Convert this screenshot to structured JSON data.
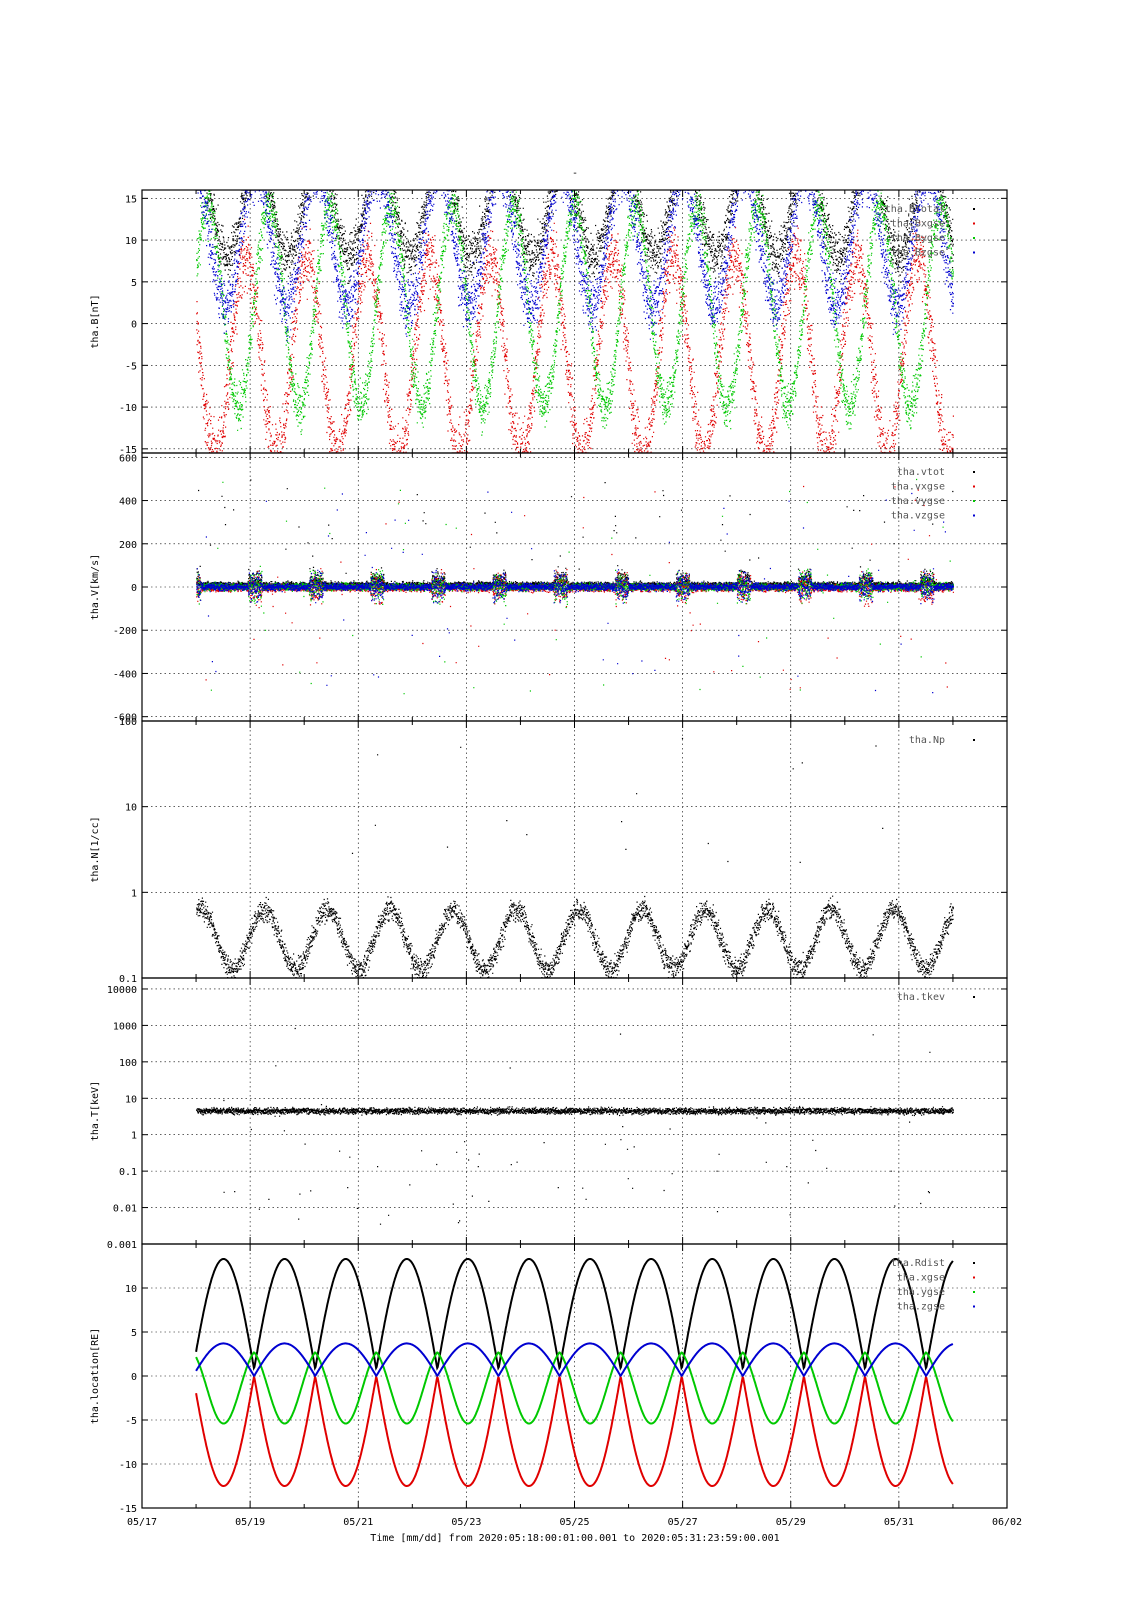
{
  "figure": {
    "title": "-",
    "xlabel": "Time [mm/dd]  from 2020:05:18:00:01:00.001  to  2020:05:31:23:59:00.001",
    "x_ticks": [
      "05/17",
      "05/19",
      "05/21",
      "05/23",
      "05/25",
      "05/27",
      "05/29",
      "05/31",
      "06/02"
    ],
    "x_range_days": [
      "2020-05-17",
      "2020-06-02"
    ]
  },
  "colors": {
    "black": "#000000",
    "red": "#e00000",
    "green": "#00c800",
    "blue": "#0000d0"
  },
  "chart_data": [
    {
      "type": "scatter",
      "ylabel": "tha.B[nT]",
      "ylim": [
        -15.5,
        16
      ],
      "yticks": [
        15,
        10,
        5,
        0,
        -5,
        -10,
        -15
      ],
      "legend_position": "top-right",
      "x_start": "2020-05-18",
      "x_end": "2020-05-31",
      "series": [
        {
          "name": "tha.Btotal",
          "color": "#000000"
        },
        {
          "name": "tha.Bxgse",
          "color": "#e00000"
        },
        {
          "name": "tha.Bygse",
          "color": "#00c800"
        },
        {
          "name": "tha.Bzgse",
          "color": "#0000d0"
        }
      ]
    },
    {
      "type": "scatter",
      "ylabel": "tha.V[km/s]",
      "ylim": [
        -620,
        620
      ],
      "yticks": [
        600,
        400,
        200,
        0,
        -200,
        -400,
        -600
      ],
      "legend_position": "top-right",
      "x_start": "2020-05-18",
      "x_end": "2020-05-31",
      "series": [
        {
          "name": "tha.vtot",
          "color": "#000000"
        },
        {
          "name": "tha.vxgse",
          "color": "#e00000"
        },
        {
          "name": "tha.vygse",
          "color": "#00c800"
        },
        {
          "name": "tha.vzgse",
          "color": "#0000d0"
        }
      ]
    },
    {
      "type": "scatter",
      "scale": "log",
      "ylabel": "tha.N[1/cc]",
      "ylim": [
        0.1,
        100
      ],
      "yticks": [
        "100",
        "10",
        "1",
        "0.1"
      ],
      "legend_position": "top-right",
      "x_start": "2020-05-18",
      "x_end": "2020-05-31",
      "series": [
        {
          "name": "tha.Np",
          "color": "#000000"
        }
      ]
    },
    {
      "type": "scatter",
      "scale": "log",
      "ylabel": "tha.T[keV]",
      "ylim": [
        0.001,
        20000
      ],
      "yticks": [
        "10000",
        "1000",
        "100",
        "10",
        "1",
        "0.1",
        "0.01",
        "0.001"
      ],
      "legend_position": "top-right",
      "x_start": "2020-05-18",
      "x_end": "2020-05-31",
      "series": [
        {
          "name": "tha.tkev",
          "color": "#000000"
        }
      ]
    },
    {
      "type": "line",
      "ylabel": "tha.location[RE]",
      "ylim": [
        -15,
        15
      ],
      "yticks": [
        10,
        5,
        0,
        -5,
        -10,
        -15
      ],
      "legend_position": "top-right",
      "x_start": "2020-05-18",
      "x_end": "2020-05-31",
      "orbit_period_days": 1.13,
      "series": [
        {
          "name": "tha.Rdist",
          "color": "#000000"
        },
        {
          "name": "tha.xgse",
          "color": "#e00000"
        },
        {
          "name": "tha.ygse",
          "color": "#00c800"
        },
        {
          "name": "tha.zgse",
          "color": "#0000d0"
        }
      ]
    }
  ]
}
